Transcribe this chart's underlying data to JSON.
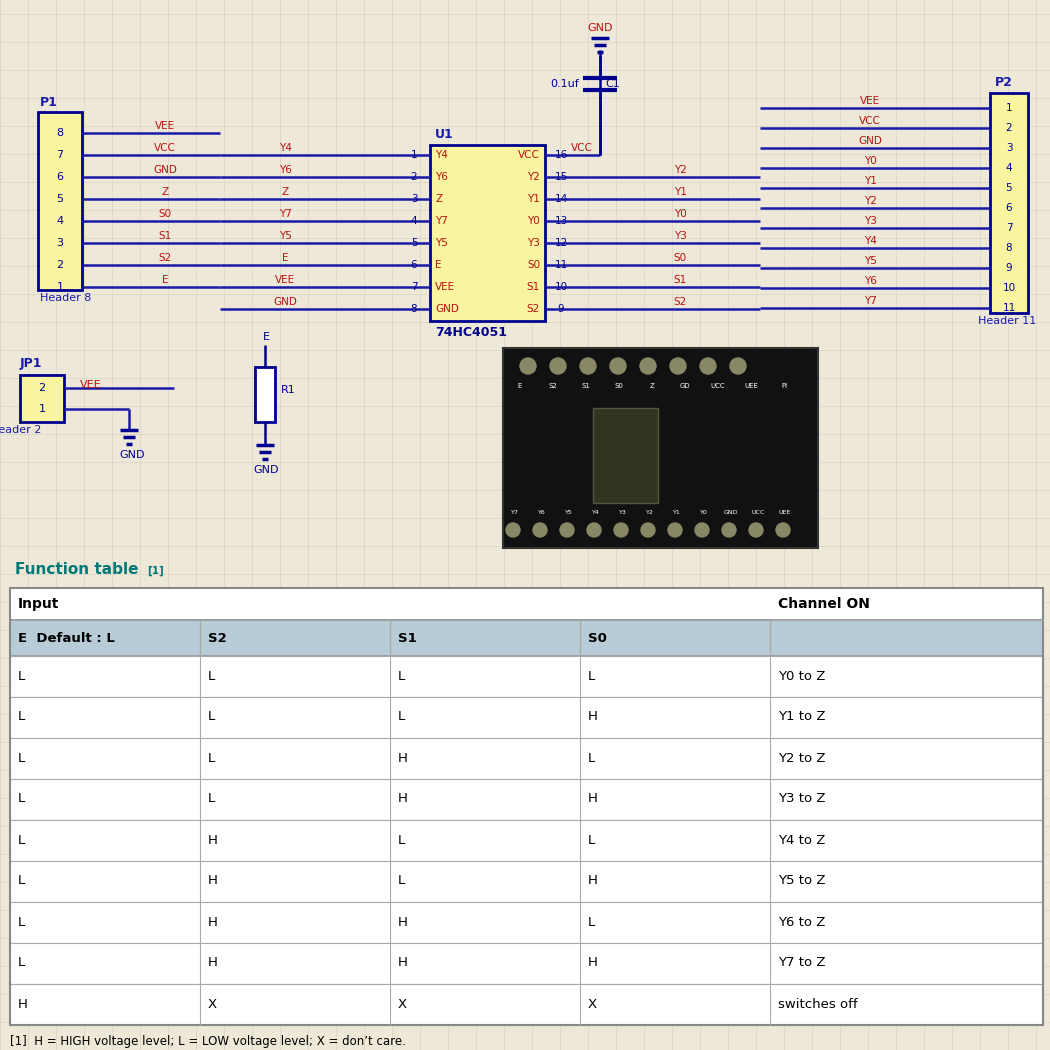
{
  "bg_color": "#ede8d8",
  "grid_color": "#d8d3c3",
  "blue": "#1a1aaa",
  "dark_blue": "#000090",
  "red": "#bb1111",
  "teal": "#007878",
  "yellow_box": "#f8f4a0",
  "table_header_bg": "#b8ccd8",
  "footnote": "[1]  H = HIGH voltage level; L = LOW voltage level; X = don’t care.",
  "table_rows": [
    [
      "L",
      "L",
      "L",
      "L",
      "Y0 to Z"
    ],
    [
      "L",
      "L",
      "L",
      "H",
      "Y1 to Z"
    ],
    [
      "L",
      "L",
      "H",
      "L",
      "Y2 to Z"
    ],
    [
      "L",
      "L",
      "H",
      "H",
      "Y3 to Z"
    ],
    [
      "L",
      "H",
      "L",
      "L",
      "Y4 to Z"
    ],
    [
      "L",
      "H",
      "L",
      "H",
      "Y5 to Z"
    ],
    [
      "L",
      "H",
      "H",
      "L",
      "Y6 to Z"
    ],
    [
      "L",
      "H",
      "H",
      "H",
      "Y7 to Z"
    ],
    [
      "H",
      "X",
      "X",
      "X",
      "switches off"
    ]
  ]
}
